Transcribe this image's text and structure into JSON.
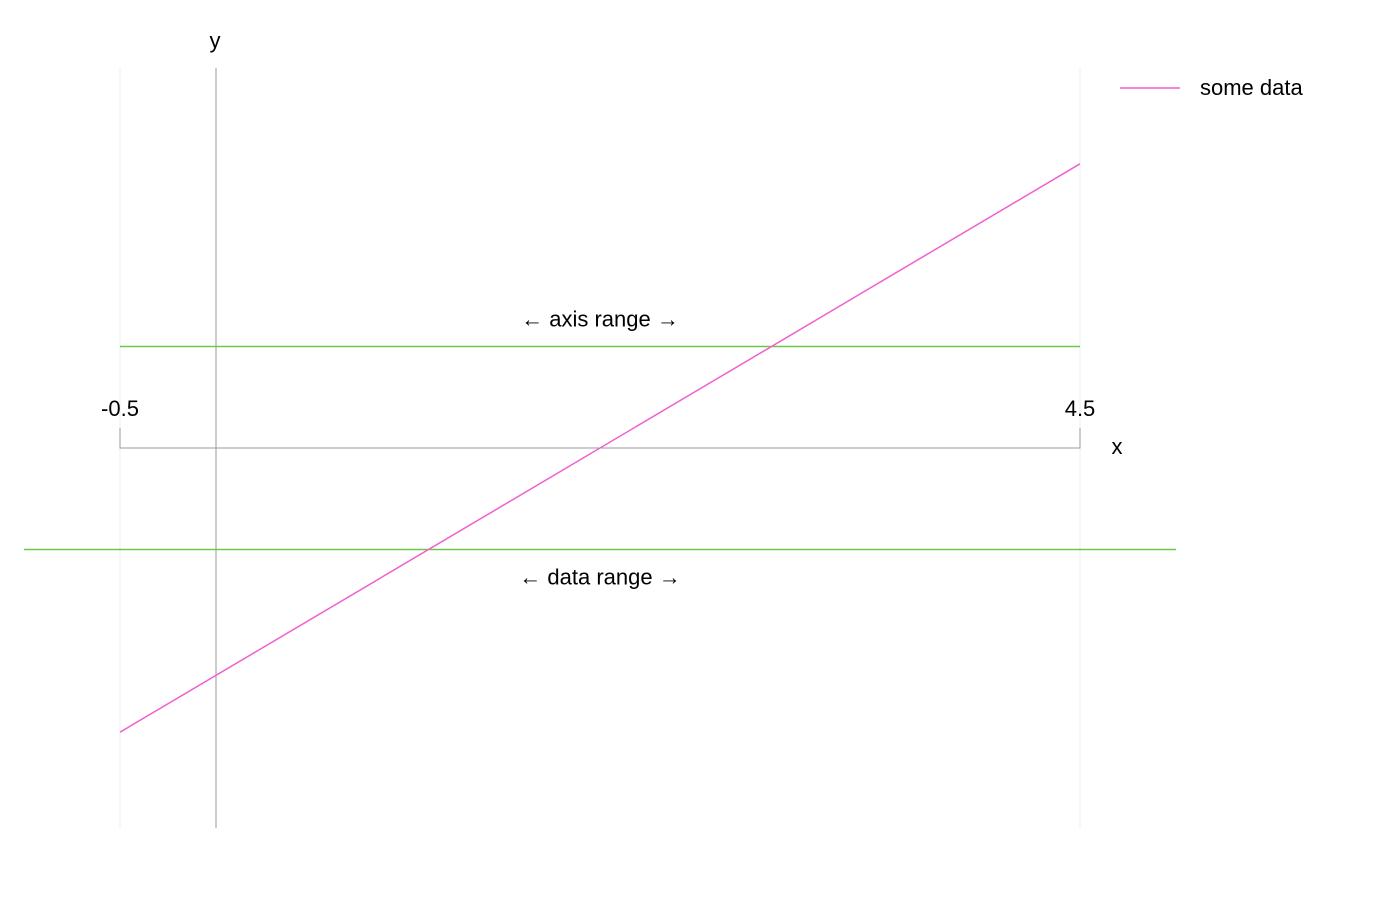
{
  "chart_data": {
    "type": "line",
    "x_axis": {
      "label": "x",
      "tick_labels": [
        "-0.5",
        "4.5"
      ],
      "range": [
        -0.5,
        4.5
      ]
    },
    "y_axis": {
      "label": "y"
    },
    "grid": false,
    "legend": {
      "position": "top-right",
      "entries": [
        "some data"
      ]
    },
    "series": [
      {
        "name": "some data",
        "color": "#f060d0",
        "x": [
          -0.5,
          4.5
        ],
        "y": [
          -1.4,
          1.4
        ]
      }
    ],
    "reference_lines": [
      {
        "label": "← axis range →",
        "y": 0.5,
        "x_extent": "axis",
        "color": "#6cc84c"
      },
      {
        "label": "← data range →",
        "y": -0.5,
        "x_extent": "data",
        "color": "#6cc84c"
      }
    ],
    "colors": {
      "series": "#f060d0",
      "range_lines": "#6cc84c",
      "axis": "#999999",
      "bound_lines": "#eeeeee"
    }
  }
}
